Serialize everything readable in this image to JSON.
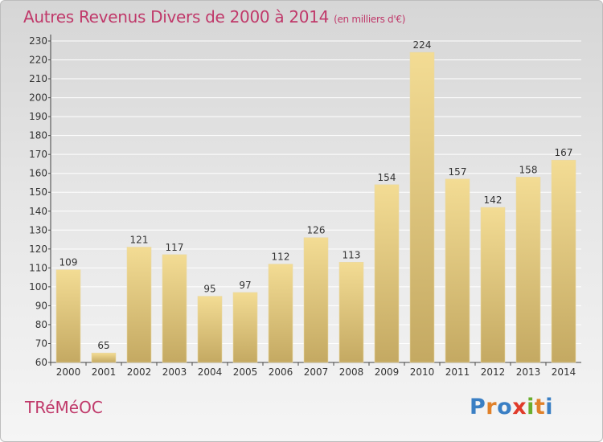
{
  "header": {
    "title": "Autres Revenus Divers de 2000 à 2014",
    "unit": "(en milliers d'€)"
  },
  "footer": {
    "commune": "TRéMéOC",
    "logo": "Proxiti"
  },
  "colors": {
    "title": "#c0396a",
    "bar_top": "#f3dc94",
    "bar_bottom": "#c4a962",
    "logo_letters": [
      "#3a7fc4",
      "#e0812a",
      "#3a7fc4",
      "#e03a2a",
      "#6aae2d",
      "#e0812a",
      "#3a7fc4"
    ]
  },
  "chart_data": {
    "type": "bar",
    "categories": [
      "2000",
      "2001",
      "2002",
      "2003",
      "2004",
      "2005",
      "2006",
      "2007",
      "2008",
      "2009",
      "2010",
      "2011",
      "2012",
      "2013",
      "2014"
    ],
    "values": [
      109,
      65,
      121,
      117,
      95,
      97,
      112,
      126,
      113,
      154,
      224,
      157,
      142,
      158,
      167
    ],
    "ylim": [
      60,
      230
    ],
    "yticks": [
      60,
      70,
      80,
      90,
      100,
      110,
      120,
      130,
      140,
      150,
      160,
      170,
      180,
      190,
      200,
      210,
      220,
      230
    ],
    "grid": true,
    "xlabel": "",
    "ylabel": ""
  }
}
